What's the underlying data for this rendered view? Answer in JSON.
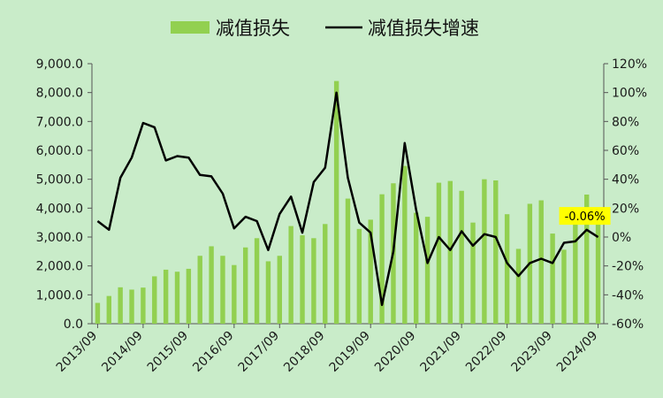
{
  "chart_data": {
    "type": "bar+line",
    "legend": {
      "position": "top",
      "bar_label": "减值损失",
      "line_label": "减值损失增速"
    },
    "colors": {
      "background": "#c9ecc9",
      "bar": "#92d050",
      "line": "#000000",
      "annotation_bg": "#ffff00"
    },
    "y_left": {
      "min": 0,
      "max": 9000,
      "step": 1000,
      "tick_labels": [
        "0.0",
        "1,000.0",
        "2,000.0",
        "3,000.0",
        "4,000.0",
        "5,000.0",
        "6,000.0",
        "7,000.0",
        "8,000.0",
        "9,000.0"
      ]
    },
    "y_right": {
      "min": -60,
      "max": 120,
      "step": 20,
      "tick_labels": [
        "-60%",
        "-40%",
        "-20%",
        "0%",
        "20%",
        "40%",
        "60%",
        "80%",
        "100%",
        "120%"
      ]
    },
    "x_tick_labels": [
      "2013/09",
      "2014/09",
      "2015/09",
      "2016/09",
      "2017/09",
      "2018/09",
      "2019/09",
      "2020/09",
      "2021/09",
      "2022/09",
      "2023/09",
      "2024/09"
    ],
    "x_tick_every": 4,
    "bar_values": [
      720,
      960,
      1260,
      1180,
      1250,
      1640,
      1870,
      1800,
      1900,
      2350,
      2680,
      2350,
      2030,
      2640,
      2960,
      2160,
      2350,
      3380,
      3060,
      2960,
      3450,
      8400,
      4330,
      3280,
      3600,
      4480,
      4860,
      5460,
      3840,
      3700,
      4880,
      4940,
      4600,
      3500,
      5000,
      4960,
      3790,
      2590,
      4150,
      4270,
      3120,
      2560,
      3460,
      4470,
      3560
    ],
    "growth_values": [
      11,
      5,
      41,
      55,
      79,
      76,
      53,
      56,
      55,
      43,
      42,
      30,
      6,
      14,
      11,
      -9,
      16,
      28,
      3,
      38,
      48,
      100,
      41,
      10,
      3,
      -47,
      -10,
      65,
      19,
      -18,
      0,
      -9,
      4,
      -6,
      2,
      0,
      -18,
      -27,
      -18,
      -15,
      -18,
      -4,
      -3,
      5,
      -0.06
    ],
    "annotation": {
      "text": "-0.06%",
      "index": 44
    }
  }
}
